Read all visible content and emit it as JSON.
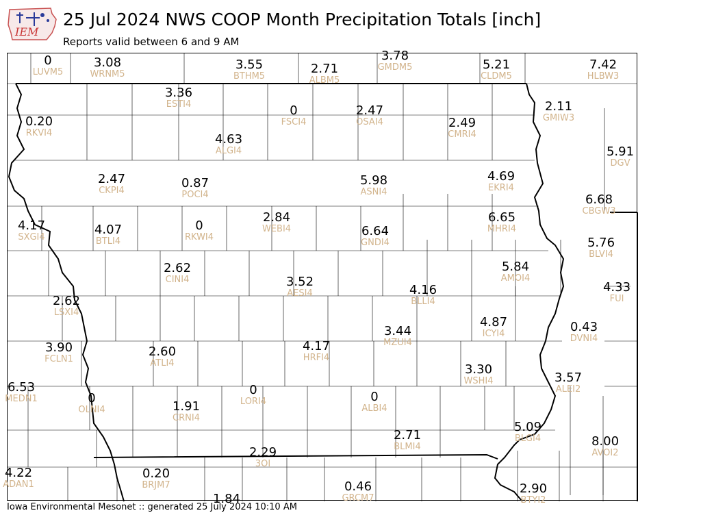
{
  "header": {
    "logo_text": "IEM",
    "title": "25 Jul 2024 NWS COOP Month Precipitation Totals [inch]",
    "subtitle": "Reports valid between 6 and 9 AM"
  },
  "footer": {
    "text": "Iowa Environmental Mesonet :: generated 25 July 2024 10:10 AM"
  },
  "stations": [
    {
      "value": "0",
      "id": "LUVM5"
    },
    {
      "value": "3.08",
      "id": "WRNM5"
    },
    {
      "value": "3.55",
      "id": "BTHM5"
    },
    {
      "value": "2.71",
      "id": "ALBM5"
    },
    {
      "value": "3.78",
      "id": "GMDM5"
    },
    {
      "value": "5.21",
      "id": "CLDM5"
    },
    {
      "value": "7.42",
      "id": "HLBW3"
    },
    {
      "value": "3.36",
      "id": "ESTI4"
    },
    {
      "value": "0",
      "id": "FSCI4"
    },
    {
      "value": "2.47",
      "id": "OSAI4"
    },
    {
      "value": "2.49",
      "id": "CMRI4"
    },
    {
      "value": "2.11",
      "id": "GMIW3"
    },
    {
      "value": "0.20",
      "id": "RKVI4"
    },
    {
      "value": "4.63",
      "id": "ALGI4"
    },
    {
      "value": "5.91",
      "id": "DGV"
    },
    {
      "value": "2.47",
      "id": "CKPI4"
    },
    {
      "value": "0.87",
      "id": "POCI4"
    },
    {
      "value": "5.98",
      "id": "ASNI4"
    },
    {
      "value": "4.69",
      "id": "EKRI4"
    },
    {
      "value": "6.68",
      "id": "CBGW3"
    },
    {
      "value": "4.17",
      "id": "SXGI4"
    },
    {
      "value": "4.07",
      "id": "BTLI4"
    },
    {
      "value": "0",
      "id": "RKWI4"
    },
    {
      "value": "2.84",
      "id": "WEBI4"
    },
    {
      "value": "6.64",
      "id": "GNDI4"
    },
    {
      "value": "6.65",
      "id": "MHRI4"
    },
    {
      "value": "5.76",
      "id": "BLVI4"
    },
    {
      "value": "2.62",
      "id": "CINI4"
    },
    {
      "value": "5.84",
      "id": "AMOI4"
    },
    {
      "value": "3.52",
      "id": "AESI4"
    },
    {
      "value": "4.16",
      "id": "BLLI4"
    },
    {
      "value": "4.33",
      "id": "FUI"
    },
    {
      "value": "2.62",
      "id": "LSXI4"
    },
    {
      "value": "4.87",
      "id": "ICYI4"
    },
    {
      "value": "0.43",
      "id": "DVNI4"
    },
    {
      "value": "3.90",
      "id": "FCLN1"
    },
    {
      "value": "2.60",
      "id": "ATLI4"
    },
    {
      "value": "4.17",
      "id": "HRFI4"
    },
    {
      "value": "3.44",
      "id": "MZUI4"
    },
    {
      "value": "3.30",
      "id": "WSHI4"
    },
    {
      "value": "3.57",
      "id": "ALEI2"
    },
    {
      "value": "6.53",
      "id": "MEDN1"
    },
    {
      "value": "0",
      "id": "OLNI4"
    },
    {
      "value": "1.91",
      "id": "CRNI4"
    },
    {
      "value": "0",
      "id": "LORI4"
    },
    {
      "value": "0",
      "id": "ALBI4"
    },
    {
      "value": "5.09",
      "id": "BLGI4"
    },
    {
      "value": "2.71",
      "id": "BLMI4"
    },
    {
      "value": "8.00",
      "id": "AVOI2"
    },
    {
      "value": "2.29",
      "id": "3OI"
    },
    {
      "value": "4.22",
      "id": "ADAN1"
    },
    {
      "value": "0.20",
      "id": "BRJM7"
    },
    {
      "value": "0.46",
      "id": "GRCM7"
    },
    {
      "value": "2.90",
      "id": "BTYI2"
    },
    {
      "value": "1.84",
      "id": ""
    }
  ]
}
